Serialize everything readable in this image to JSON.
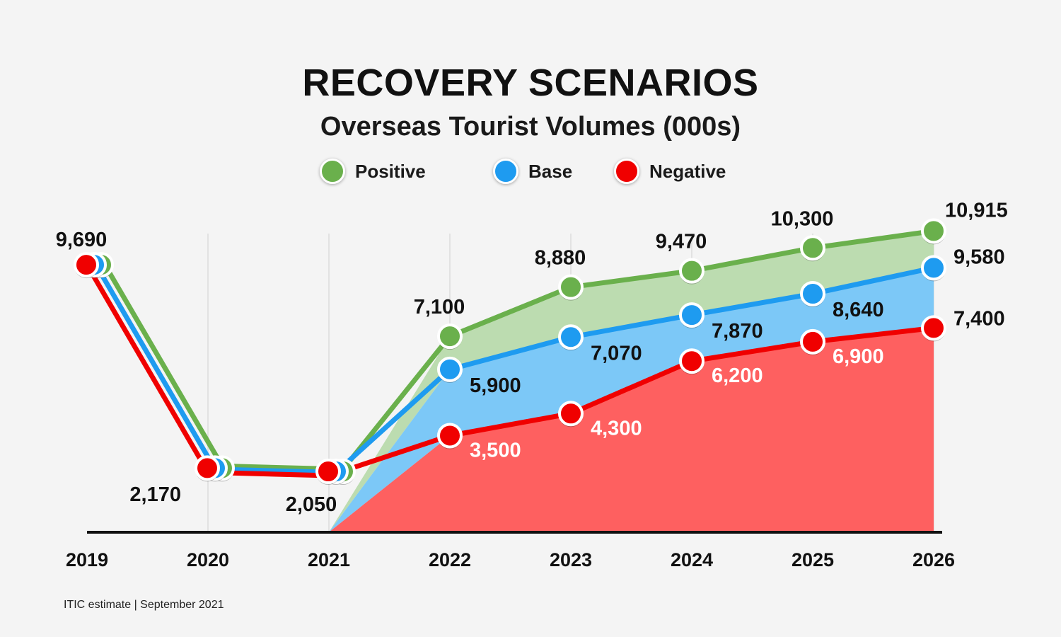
{
  "header": {
    "title": "RECOVERY SCENARIOS",
    "subtitle": "Overseas Tourist Volumes (000s)"
  },
  "footer": {
    "source": "ITIC estimate | September 2021"
  },
  "colors": {
    "positive_line": "#6ab04c",
    "positive_area": "#bcdcb0",
    "base_line": "#1e9bf0",
    "base_area": "#7cc8f7",
    "negative_line": "#f00000",
    "negative_area": "#fe6060",
    "axis": "#111111",
    "grid": "#dcdcdc"
  },
  "chart_data": {
    "type": "area",
    "categories": [
      "2019",
      "2020",
      "2021",
      "2022",
      "2023",
      "2024",
      "2025",
      "2026"
    ],
    "series": [
      {
        "name": "Positive",
        "values": [
          9690,
          2170,
          2050,
          7100,
          8880,
          9470,
          10300,
          10915
        ],
        "labels": [
          "9,690",
          "2,170",
          "2,050",
          "7,100",
          "8,880",
          "9,470",
          "10,300",
          "10,915"
        ]
      },
      {
        "name": "Base",
        "values": [
          9690,
          2170,
          2050,
          5900,
          7070,
          7870,
          8640,
          9580
        ],
        "labels": [
          "",
          "",
          "",
          "5,900",
          "7,070",
          "7,870",
          "8,640",
          "9,580"
        ]
      },
      {
        "name": "Negative",
        "values": [
          9690,
          2170,
          2050,
          3500,
          4300,
          6200,
          6900,
          7400
        ],
        "labels": [
          "",
          "",
          "",
          "3,500",
          "4,300",
          "6,200",
          "6,900",
          "7,400"
        ]
      }
    ],
    "legend_position": "top-center",
    "grid": "vertical"
  }
}
